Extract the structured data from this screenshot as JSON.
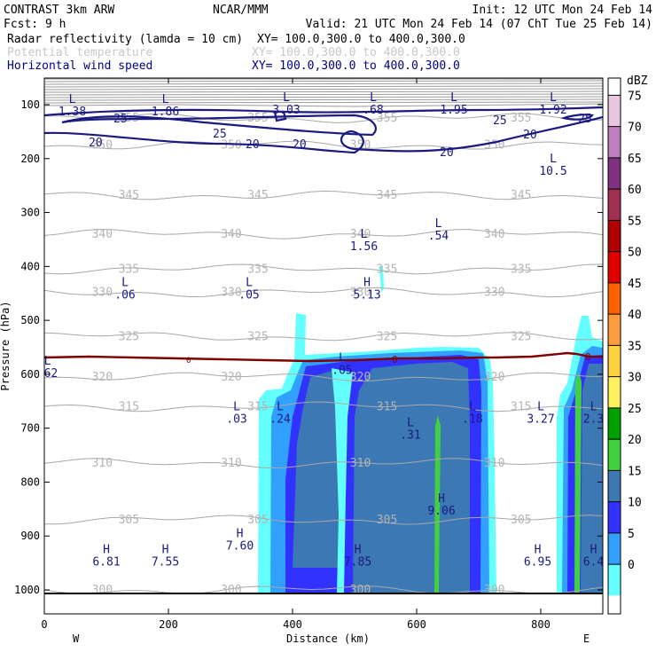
{
  "header": {
    "model": "CONTRAST   3km ARW",
    "org": "NCAR/MMM",
    "init": "Init: 12 UTC Mon 24 Feb 14",
    "fcst": "Fcst:     9 h",
    "valid": "Valid: 21 UTC Mon 24 Feb 14 (07 ChT Tue 25 Feb 14)",
    "fields": [
      {
        "name": "Radar reflectivity (lamda = 10 cm)",
        "xy": "XY= 100.0,300.0 to 400.0,300.0",
        "color": "#000000"
      },
      {
        "name": "Potential temperature",
        "xy": "XY= 100.0,300.0 to 400.0,300.0",
        "color": "#c0c0c0"
      },
      {
        "name": "Horizontal wind speed",
        "xy": "XY= 100.0,300.0 to 400.0,300.0",
        "color": "#000080"
      }
    ]
  },
  "chart_data": {
    "type": "cross-section",
    "xlabel": "Distance (km)",
    "ylabel": "Pressure (hPa)",
    "xlim": [
      0,
      900
    ],
    "ylim": [
      1000,
      100
    ],
    "x_ticks": [
      0,
      200,
      400,
      600,
      800
    ],
    "y_ticks": [
      100,
      200,
      300,
      400,
      500,
      600,
      700,
      800,
      900,
      1000
    ],
    "x_end_labels": {
      "left": "W",
      "right": "E"
    },
    "colorbar": {
      "unit": "dBZ",
      "levels": [
        {
          "v": "75",
          "c": "#e8c6e0"
        },
        {
          "v": "70",
          "c": "#c080c0"
        },
        {
          "v": "65",
          "c": "#803080"
        },
        {
          "v": "60",
          "c": "#a03050"
        },
        {
          "v": "55",
          "c": "#b00000"
        },
        {
          "v": "50",
          "c": "#e00000"
        },
        {
          "v": "45",
          "c": "#ff6000"
        },
        {
          "v": "40",
          "c": "#ff9c40"
        },
        {
          "v": "35",
          "c": "#ffd040"
        },
        {
          "v": "30",
          "c": "#fff060"
        },
        {
          "v": "25",
          "c": "#00a000"
        },
        {
          "v": "20",
          "c": "#40d040"
        },
        {
          "v": "15",
          "c": "#3c78b4"
        },
        {
          "v": "10",
          "c": "#3232ff"
        },
        {
          "v": "5",
          "c": "#32a0ff"
        },
        {
          "v": "0",
          "c": "#64ffff"
        }
      ]
    },
    "theta_contours": [
      {
        "label": "300",
        "p": 1000
      },
      {
        "label": "305",
        "p": 870
      },
      {
        "label": "310",
        "p": 765
      },
      {
        "label": "315",
        "p": 660
      },
      {
        "label": "320",
        "p": 605
      },
      {
        "label": "325",
        "p": 530
      },
      {
        "label": "330",
        "p": 448
      },
      {
        "label": "335",
        "p": 405
      },
      {
        "label": "340",
        "p": 340
      },
      {
        "label": "345",
        "p": 268
      },
      {
        "label": "350",
        "p": 175
      },
      {
        "label": "355",
        "p": 125
      }
    ],
    "wind_contour_levels": [
      20,
      25
    ],
    "freezing_level_label": "0",
    "pressure_extrema": [
      {
        "type": "L",
        "value": "1.38",
        "x": 45,
        "p": 100
      },
      {
        "type": "L",
        "value": "1.86",
        "x": 195,
        "p": 100
      },
      {
        "type": "L",
        "value": "3.03",
        "x": 390,
        "p": 97
      },
      {
        "type": "L",
        "value": ".68",
        "x": 530,
        "p": 97
      },
      {
        "type": "L",
        "value": "1.95",
        "x": 660,
        "p": 97
      },
      {
        "type": "L",
        "value": "1.92",
        "x": 820,
        "p": 97
      },
      {
        "type": "L",
        "value": "10.5",
        "x": 820,
        "p": 210
      },
      {
        "type": "L",
        "value": ".54",
        "x": 635,
        "p": 330
      },
      {
        "type": "L",
        "value": "1.56",
        "x": 515,
        "p": 350
      },
      {
        "type": "L",
        "value": ".06",
        "x": 130,
        "p": 440
      },
      {
        "type": "L",
        "value": ".05",
        "x": 330,
        "p": 440
      },
      {
        "type": "H",
        "value": "5.13",
        "x": 520,
        "p": 440
      },
      {
        "type": "L",
        "value": ".05",
        "x": 480,
        "p": 580
      },
      {
        "type": "L",
        "value": ".62",
        "x": 5,
        "p": 585
      },
      {
        "type": "L",
        "value": ".03",
        "x": 310,
        "p": 670
      },
      {
        "type": "L",
        "value": ".24",
        "x": 380,
        "p": 670
      },
      {
        "type": "L",
        "value": ".18",
        "x": 690,
        "p": 670
      },
      {
        "type": "L",
        "value": "3.27",
        "x": 800,
        "p": 670
      },
      {
        "type": "L",
        "value": "2.3",
        "x": 885,
        "p": 670
      },
      {
        "type": "L",
        "value": ".31",
        "x": 590,
        "p": 700
      },
      {
        "type": "H",
        "value": "9.06",
        "x": 640,
        "p": 840
      },
      {
        "type": "H",
        "value": "7.60",
        "x": 315,
        "p": 905
      },
      {
        "type": "H",
        "value": "6.81",
        "x": 100,
        "p": 935
      },
      {
        "type": "H",
        "value": "7.55",
        "x": 195,
        "p": 935
      },
      {
        "type": "H",
        "value": "7.85",
        "x": 505,
        "p": 935
      },
      {
        "type": "H",
        "value": "6.95",
        "x": 795,
        "p": 935
      },
      {
        "type": "H",
        "value": "6.4",
        "x": 885,
        "p": 935
      }
    ]
  }
}
